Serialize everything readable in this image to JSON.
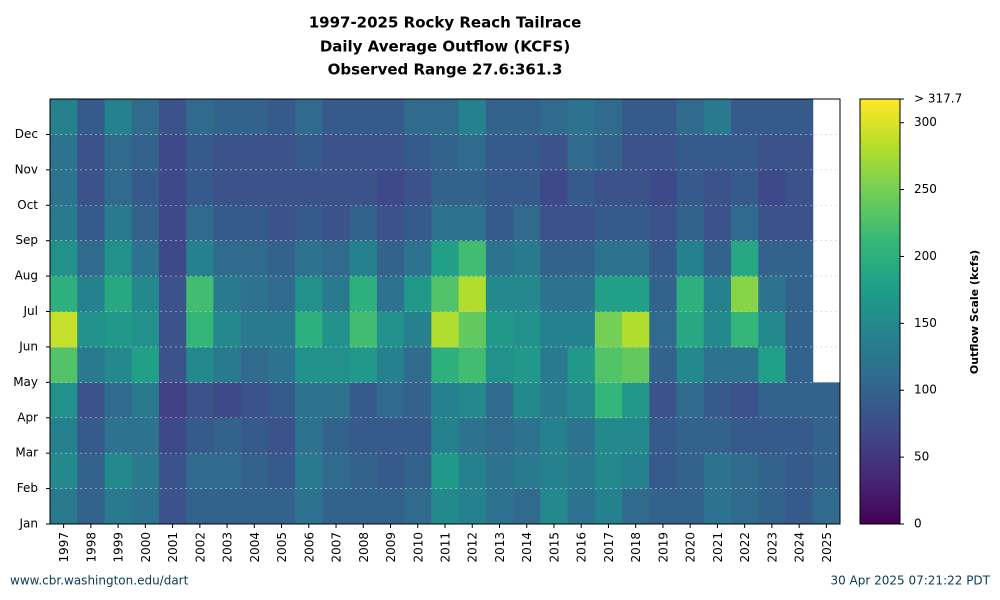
{
  "chart_data": {
    "type": "heatmap",
    "title": "1997-2025 Rocky Reach Tailrace",
    "subtitle": "Daily Average Outflow (KCFS)",
    "annotation": "Observed Range 27.6:361.3",
    "categories": [
      "1997",
      "1998",
      "1999",
      "2000",
      "2001",
      "2002",
      "2003",
      "2004",
      "2005",
      "2006",
      "2007",
      "2008",
      "2009",
      "2010",
      "2011",
      "2012",
      "2013",
      "2014",
      "2015",
      "2016",
      "2017",
      "2018",
      "2019",
      "2020",
      "2021",
      "2022",
      "2023",
      "2024",
      "2025"
    ],
    "y_categories": [
      "Jan",
      "Feb",
      "Mar",
      "Apr",
      "May",
      "Jun",
      "Jul",
      "Aug",
      "Sep",
      "Oct",
      "Nov",
      "Dec"
    ],
    "values": [
      [
        130,
        150,
        140,
        160,
        230,
        290,
        200,
        160,
        130,
        120,
        120,
        140
      ],
      [
        100,
        100,
        90,
        80,
        130,
        160,
        140,
        110,
        90,
        80,
        80,
        90
      ],
      [
        130,
        150,
        120,
        110,
        150,
        170,
        190,
        160,
        130,
        110,
        110,
        140
      ],
      [
        120,
        130,
        120,
        130,
        180,
        160,
        150,
        120,
        100,
        90,
        100,
        110
      ],
      [
        80,
        80,
        70,
        60,
        80,
        80,
        80,
        70,
        70,
        70,
        70,
        80
      ],
      [
        100,
        110,
        90,
        80,
        150,
        210,
        220,
        140,
        110,
        90,
        90,
        110
      ],
      [
        100,
        110,
        100,
        70,
        130,
        150,
        130,
        110,
        90,
        80,
        80,
        100
      ],
      [
        100,
        100,
        90,
        80,
        110,
        130,
        120,
        110,
        90,
        80,
        80,
        100
      ],
      [
        100,
        90,
        80,
        90,
        120,
        130,
        110,
        100,
        80,
        80,
        80,
        90
      ],
      [
        120,
        130,
        120,
        120,
        160,
        200,
        160,
        120,
        90,
        80,
        90,
        110
      ],
      [
        100,
        110,
        100,
        120,
        160,
        160,
        130,
        110,
        80,
        80,
        80,
        90
      ],
      [
        100,
        100,
        90,
        90,
        170,
        220,
        200,
        140,
        100,
        80,
        80,
        90
      ],
      [
        100,
        90,
        90,
        110,
        140,
        160,
        120,
        100,
        80,
        70,
        80,
        90
      ],
      [
        110,
        100,
        90,
        100,
        110,
        140,
        170,
        120,
        90,
        80,
        90,
        110
      ],
      [
        150,
        170,
        140,
        140,
        200,
        280,
        230,
        180,
        120,
        100,
        100,
        110
      ],
      [
        140,
        140,
        120,
        150,
        220,
        240,
        280,
        220,
        120,
        100,
        110,
        140
      ],
      [
        120,
        120,
        110,
        110,
        160,
        170,
        150,
        120,
        90,
        90,
        90,
        100
      ],
      [
        110,
        130,
        120,
        150,
        170,
        160,
        150,
        130,
        110,
        90,
        90,
        100
      ],
      [
        150,
        140,
        140,
        130,
        130,
        140,
        120,
        100,
        80,
        70,
        80,
        110
      ],
      [
        120,
        130,
        120,
        150,
        170,
        140,
        120,
        100,
        80,
        90,
        110,
        120
      ],
      [
        140,
        150,
        150,
        210,
        230,
        250,
        180,
        120,
        90,
        80,
        100,
        110
      ],
      [
        110,
        140,
        150,
        170,
        240,
        280,
        180,
        120,
        90,
        80,
        80,
        90
      ],
      [
        100,
        90,
        90,
        80,
        100,
        110,
        100,
        90,
        80,
        70,
        80,
        90
      ],
      [
        100,
        100,
        100,
        110,
        150,
        190,
        200,
        140,
        100,
        90,
        90,
        110
      ],
      [
        120,
        120,
        100,
        90,
        120,
        150,
        140,
        100,
        80,
        80,
        90,
        130
      ],
      [
        110,
        110,
        90,
        80,
        120,
        210,
        260,
        190,
        110,
        90,
        90,
        90
      ],
      [
        100,
        100,
        90,
        100,
        180,
        150,
        120,
        100,
        80,
        70,
        80,
        90
      ],
      [
        90,
        90,
        90,
        100,
        100,
        100,
        100,
        100,
        80,
        80,
        80,
        90
      ],
      [
        110,
        100,
        100,
        100,
        null,
        null,
        null,
        null,
        null,
        null,
        null,
        null
      ]
    ],
    "colormap": "viridis",
    "clim": [
      0,
      317.7
    ],
    "cticks": [
      0,
      50,
      100,
      150,
      200,
      250,
      300,
      {
        "value": 317.7,
        "label": "> 317.7"
      }
    ],
    "colorbar_label": "Outflow Scale (kcfs)",
    "grid": true,
    "source": "www.cbr.washington.edu/dart",
    "timestamp": "30 Apr 2025 07:21:22 PDT"
  }
}
